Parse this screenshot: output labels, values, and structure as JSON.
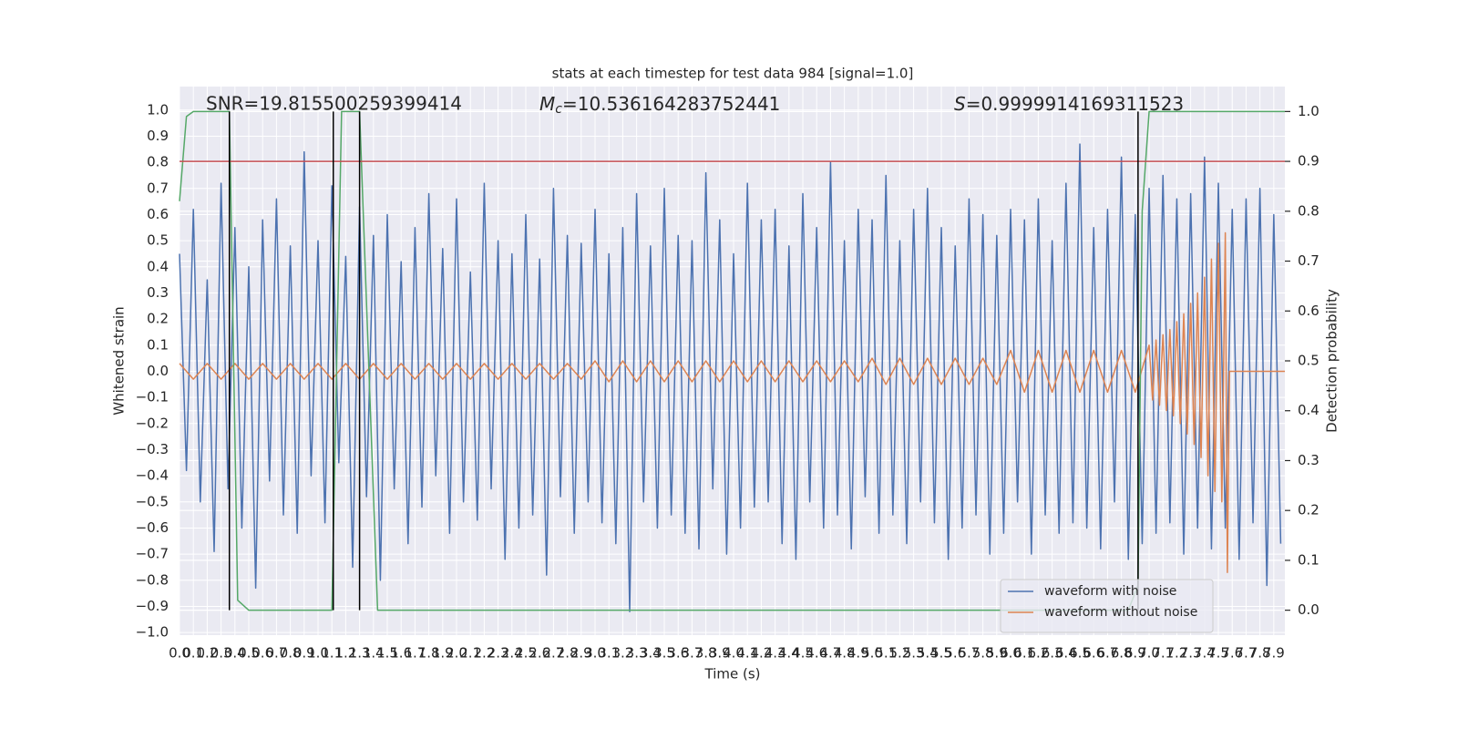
{
  "chart_data": {
    "type": "line",
    "title": "stats at each timestep for test data 984 [signal=1.0]",
    "xlabel": "Time (s)",
    "ylabel": "Whitened strain",
    "y2label": "Detection probability",
    "background": "#eaeaf2",
    "grid": true,
    "legend": "lower right",
    "xlim": [
      0,
      7.98
    ],
    "ylim": [
      -1.01,
      1.09
    ],
    "y2lim": [
      -0.05,
      1.05
    ],
    "xticks": [
      {
        "value": 0,
        "label": "0.0"
      },
      {
        "value": 0.1,
        "label": "0.1"
      },
      {
        "value": 0.2,
        "label": "0.2"
      },
      {
        "value": 0.3,
        "label": "0.3"
      },
      {
        "value": 0.4,
        "label": "0.4"
      },
      {
        "value": 0.5,
        "label": "0.5"
      },
      {
        "value": 0.6,
        "label": "0.6"
      },
      {
        "value": 0.7,
        "label": "0.7"
      },
      {
        "value": 0.8,
        "label": "0.8"
      },
      {
        "value": 0.9,
        "label": "0.9"
      },
      {
        "value": 1,
        "label": "1.0"
      },
      {
        "value": 1.1,
        "label": "1.1"
      },
      {
        "value": 1.2,
        "label": "1.2"
      },
      {
        "value": 1.3,
        "label": "1.3"
      },
      {
        "value": 1.4,
        "label": "1.4"
      },
      {
        "value": 1.5,
        "label": "1.5"
      },
      {
        "value": 1.6,
        "label": "1.6"
      },
      {
        "value": 1.7,
        "label": "1.7"
      },
      {
        "value": 1.8,
        "label": "1.8"
      },
      {
        "value": 1.9,
        "label": "1.9"
      },
      {
        "value": 2,
        "label": "2.0"
      },
      {
        "value": 2.1,
        "label": "2.1"
      },
      {
        "value": 2.2,
        "label": "2.2"
      },
      {
        "value": 2.3,
        "label": "2.3"
      },
      {
        "value": 2.4,
        "label": "2.4"
      },
      {
        "value": 2.5,
        "label": "2.5"
      },
      {
        "value": 2.6,
        "label": "2.6"
      },
      {
        "value": 2.7,
        "label": "2.7"
      },
      {
        "value": 2.8,
        "label": "2.8"
      },
      {
        "value": 2.9,
        "label": "2.9"
      },
      {
        "value": 3,
        "label": "3.0"
      },
      {
        "value": 3.1,
        "label": "3.1"
      },
      {
        "value": 3.2,
        "label": "3.2"
      },
      {
        "value": 3.3,
        "label": "3.3"
      },
      {
        "value": 3.4,
        "label": "3.4"
      },
      {
        "value": 3.5,
        "label": "3.5"
      },
      {
        "value": 3.6,
        "label": "3.6"
      },
      {
        "value": 3.7,
        "label": "3.7"
      },
      {
        "value": 3.8,
        "label": "3.8"
      },
      {
        "value": 3.9,
        "label": "3.9"
      },
      {
        "value": 4,
        "label": "4.0"
      },
      {
        "value": 4.1,
        "label": "4.1"
      },
      {
        "value": 4.2,
        "label": "4.2"
      },
      {
        "value": 4.3,
        "label": "4.3"
      },
      {
        "value": 4.4,
        "label": "4.4"
      },
      {
        "value": 4.5,
        "label": "4.5"
      },
      {
        "value": 4.6,
        "label": "4.6"
      },
      {
        "value": 4.7,
        "label": "4.7"
      },
      {
        "value": 4.8,
        "label": "4.8"
      },
      {
        "value": 4.9,
        "label": "4.9"
      },
      {
        "value": 5,
        "label": "5.0"
      },
      {
        "value": 5.1,
        "label": "5.1"
      },
      {
        "value": 5.2,
        "label": "5.2"
      },
      {
        "value": 5.3,
        "label": "5.3"
      },
      {
        "value": 5.4,
        "label": "5.4"
      },
      {
        "value": 5.5,
        "label": "5.5"
      },
      {
        "value": 5.6,
        "label": "5.6"
      },
      {
        "value": 5.7,
        "label": "5.7"
      },
      {
        "value": 5.8,
        "label": "5.8"
      },
      {
        "value": 5.9,
        "label": "5.9"
      },
      {
        "value": 6,
        "label": "6.0"
      },
      {
        "value": 6.1,
        "label": "6.1"
      },
      {
        "value": 6.2,
        "label": "6.2"
      },
      {
        "value": 6.3,
        "label": "6.3"
      },
      {
        "value": 6.4,
        "label": "6.4"
      },
      {
        "value": 6.5,
        "label": "6.5"
      },
      {
        "value": 6.6,
        "label": "6.6"
      },
      {
        "value": 6.7,
        "label": "6.7"
      },
      {
        "value": 6.8,
        "label": "6.8"
      },
      {
        "value": 6.9,
        "label": "6.9"
      },
      {
        "value": 7,
        "label": "7.0"
      },
      {
        "value": 7.1,
        "label": "7.1"
      },
      {
        "value": 7.2,
        "label": "7.2"
      },
      {
        "value": 7.3,
        "label": "7.3"
      },
      {
        "value": 7.4,
        "label": "7.4"
      },
      {
        "value": 7.5,
        "label": "7.5"
      },
      {
        "value": 7.6,
        "label": "7.6"
      },
      {
        "value": 7.7,
        "label": "7.7"
      },
      {
        "value": 7.8,
        "label": "7.8"
      },
      {
        "value": 7.9,
        "label": "7.9"
      }
    ],
    "yticks": [
      {
        "value": -1,
        "label": "−1.0"
      },
      {
        "value": -0.9,
        "label": "−0.9"
      },
      {
        "value": -0.8,
        "label": "−0.8"
      },
      {
        "value": -0.7,
        "label": "−0.7"
      },
      {
        "value": -0.6,
        "label": "−0.6"
      },
      {
        "value": -0.5,
        "label": "−0.5"
      },
      {
        "value": -0.4,
        "label": "−0.4"
      },
      {
        "value": -0.3,
        "label": "−0.3"
      },
      {
        "value": -0.2,
        "label": "−0.2"
      },
      {
        "value": -0.1,
        "label": "−0.1"
      },
      {
        "value": 0,
        "label": "0.0"
      },
      {
        "value": 0.1,
        "label": "0.1"
      },
      {
        "value": 0.2,
        "label": "0.2"
      },
      {
        "value": 0.3,
        "label": "0.3"
      },
      {
        "value": 0.4,
        "label": "0.4"
      },
      {
        "value": 0.5,
        "label": "0.5"
      },
      {
        "value": 0.6,
        "label": "0.6"
      },
      {
        "value": 0.7,
        "label": "0.7"
      },
      {
        "value": 0.8,
        "label": "0.8"
      },
      {
        "value": 0.9,
        "label": "0.9"
      },
      {
        "value": 1,
        "label": "1.0"
      }
    ],
    "y2ticks": [
      {
        "value": 0,
        "label": "0.0"
      },
      {
        "value": 0.1,
        "label": "0.1"
      },
      {
        "value": 0.2,
        "label": "0.2"
      },
      {
        "value": 0.3,
        "label": "0.3"
      },
      {
        "value": 0.4,
        "label": "0.4"
      },
      {
        "value": 0.5,
        "label": "0.5"
      },
      {
        "value": 0.6,
        "label": "0.6"
      },
      {
        "value": 0.7,
        "label": "0.7"
      },
      {
        "value": 0.8,
        "label": "0.8"
      },
      {
        "value": 0.9,
        "label": "0.9"
      },
      {
        "value": 1,
        "label": "1.0"
      }
    ],
    "series": [
      {
        "name": "waveform with noise",
        "color": "#4c72b0",
        "x": [
          0,
          0.05,
          0.1,
          0.15,
          0.2,
          0.25,
          0.3,
          0.35,
          0.4,
          0.45,
          0.5,
          0.55,
          0.6,
          0.65,
          0.7,
          0.75,
          0.8,
          0.85,
          0.9,
          0.95,
          1,
          1.05,
          1.1,
          1.15,
          1.2,
          1.25,
          1.3,
          1.35,
          1.4,
          1.45,
          1.5,
          1.55,
          1.6,
          1.65,
          1.7,
          1.75,
          1.8,
          1.85,
          1.9,
          1.95,
          2,
          2.05,
          2.1,
          2.15,
          2.2,
          2.25,
          2.3,
          2.35,
          2.4,
          2.45,
          2.5,
          2.55,
          2.6,
          2.65,
          2.7,
          2.75,
          2.8,
          2.85,
          2.9,
          2.95,
          3,
          3.05,
          3.1,
          3.15,
          3.2,
          3.25,
          3.3,
          3.35,
          3.4,
          3.45,
          3.5,
          3.55,
          3.6,
          3.65,
          3.7,
          3.75,
          3.8,
          3.85,
          3.9,
          3.95,
          4,
          4.05,
          4.1,
          4.15,
          4.2,
          4.25,
          4.3,
          4.35,
          4.4,
          4.45,
          4.5,
          4.55,
          4.6,
          4.65,
          4.7,
          4.75,
          4.8,
          4.85,
          4.9,
          4.95,
          5,
          5.05,
          5.1,
          5.15,
          5.2,
          5.25,
          5.3,
          5.35,
          5.4,
          5.45,
          5.5,
          5.55,
          5.6,
          5.65,
          5.7,
          5.75,
          5.8,
          5.85,
          5.9,
          5.95,
          6,
          6.05,
          6.1,
          6.15,
          6.2,
          6.25,
          6.3,
          6.35,
          6.4,
          6.45,
          6.5,
          6.55,
          6.6,
          6.65,
          6.7,
          6.75,
          6.8,
          6.85,
          6.9,
          6.95,
          7,
          7.05,
          7.1,
          7.15,
          7.2,
          7.25,
          7.3,
          7.35,
          7.4,
          7.45,
          7.5,
          7.55,
          7.6,
          7.65,
          7.7,
          7.75,
          7.8,
          7.85,
          7.9,
          7.95
        ],
        "values": [
          0.45,
          -0.38,
          0.62,
          -0.5,
          0.35,
          -0.69,
          0.72,
          -0.45,
          0.55,
          -0.6,
          0.4,
          -0.83,
          0.58,
          -0.42,
          0.66,
          -0.55,
          0.48,
          -0.62,
          0.84,
          -0.4,
          0.5,
          -0.58,
          0.71,
          -0.35,
          0.44,
          -0.75,
          0.63,
          -0.48,
          0.52,
          -0.8,
          0.6,
          -0.45,
          0.42,
          -0.66,
          0.55,
          -0.52,
          0.68,
          -0.4,
          0.47,
          -0.62,
          0.66,
          -0.5,
          0.38,
          -0.57,
          0.72,
          -0.45,
          0.5,
          -0.72,
          0.45,
          -0.6,
          0.6,
          -0.55,
          0.43,
          -0.78,
          0.7,
          -0.48,
          0.52,
          -0.62,
          0.49,
          -0.5,
          0.62,
          -0.58,
          0.45,
          -0.66,
          0.55,
          -0.92,
          0.68,
          -0.5,
          0.48,
          -0.6,
          0.7,
          -0.55,
          0.52,
          -0.62,
          0.5,
          -0.68,
          0.76,
          -0.45,
          0.58,
          -0.7,
          0.45,
          -0.6,
          0.72,
          -0.52,
          0.58,
          -0.5,
          0.62,
          -0.66,
          0.48,
          -0.72,
          0.68,
          -0.5,
          0.55,
          -0.6,
          0.8,
          -0.55,
          0.5,
          -0.68,
          0.62,
          -0.48,
          0.58,
          -0.62,
          0.75,
          -0.55,
          0.5,
          -0.66,
          0.62,
          -0.5,
          0.7,
          -0.58,
          0.55,
          -0.72,
          0.48,
          -0.6,
          0.66,
          -0.55,
          0.6,
          -0.7,
          0.52,
          -0.62,
          0.62,
          -0.5,
          0.58,
          -0.7,
          0.66,
          -0.55,
          0.5,
          -0.62,
          0.72,
          -0.58,
          0.87,
          -0.6,
          0.55,
          -0.68,
          0.62,
          -0.5,
          0.82,
          -0.72,
          0.6,
          -0.66,
          0.7,
          -0.62,
          0.75,
          -0.58,
          0.66,
          -0.7,
          0.68,
          -0.6,
          0.82,
          -0.68,
          0.72,
          -0.6,
          0.62,
          -0.72,
          0.66,
          -0.58,
          0.7,
          -0.82,
          0.6,
          -0.66
        ]
      },
      {
        "name": "waveform without noise",
        "color": "#dd8452",
        "x": [
          0,
          0.1,
          0.2,
          0.3,
          0.4,
          0.5,
          0.6,
          0.7,
          0.8,
          0.9,
          1,
          1.1,
          1.2,
          1.3,
          1.4,
          1.5,
          1.6,
          1.7,
          1.8,
          1.9,
          2,
          2.1,
          2.2,
          2.3,
          2.4,
          2.5,
          2.6,
          2.7,
          2.8,
          2.9,
          3,
          3.1,
          3.2,
          3.3,
          3.4,
          3.5,
          3.6,
          3.7,
          3.8,
          3.9,
          4,
          4.1,
          4.2,
          4.3,
          4.4,
          4.5,
          4.6,
          4.7,
          4.8,
          4.9,
          5,
          5.1,
          5.2,
          5.3,
          5.4,
          5.5,
          5.6,
          5.7,
          5.8,
          5.9,
          6,
          6.1,
          6.2,
          6.3,
          6.4,
          6.5,
          6.6,
          6.7,
          6.8,
          6.9,
          7,
          7.025,
          7.05,
          7.075,
          7.1,
          7.125,
          7.15,
          7.175,
          7.2,
          7.225,
          7.25,
          7.275,
          7.3,
          7.325,
          7.35,
          7.375,
          7.4,
          7.425,
          7.45,
          7.475,
          7.5,
          7.525,
          7.55,
          7.565,
          7.58,
          7.98
        ],
        "values": [
          0.03,
          -0.03,
          0.03,
          -0.03,
          0.03,
          -0.03,
          0.03,
          -0.03,
          0.03,
          -0.03,
          0.03,
          -0.03,
          0.03,
          -0.03,
          0.03,
          -0.03,
          0.03,
          -0.03,
          0.03,
          -0.03,
          0.03,
          -0.03,
          0.03,
          -0.03,
          0.03,
          -0.03,
          0.03,
          -0.03,
          0.03,
          -0.03,
          0.04,
          -0.04,
          0.04,
          -0.04,
          0.04,
          -0.04,
          0.04,
          -0.04,
          0.04,
          -0.04,
          0.04,
          -0.04,
          0.04,
          -0.04,
          0.04,
          -0.04,
          0.04,
          -0.04,
          0.04,
          -0.04,
          0.05,
          -0.05,
          0.05,
          -0.05,
          0.05,
          -0.05,
          0.05,
          -0.05,
          0.05,
          -0.05,
          0.08,
          -0.08,
          0.08,
          -0.08,
          0.08,
          -0.08,
          0.08,
          -0.08,
          0.08,
          -0.08,
          0.1,
          -0.11,
          0.12,
          -0.13,
          0.14,
          -0.15,
          0.16,
          -0.17,
          0.19,
          -0.2,
          0.22,
          -0.24,
          0.26,
          -0.28,
          0.3,
          -0.33,
          0.36,
          -0.4,
          0.43,
          -0.46,
          0.49,
          -0.5,
          0.53,
          -0.77,
          0,
          0
        ]
      },
      {
        "color": "#55a868",
        "axis": "y2",
        "x": [
          0,
          0.05,
          0.1,
          0.36,
          0.42,
          0.5,
          1.1,
          1.17,
          1.22,
          1.3,
          1.43,
          6.85,
          6.92,
          6.95,
          7,
          7.98
        ],
        "values": [
          0.82,
          0.99,
          1,
          1,
          0.02,
          0,
          0,
          1,
          1,
          1,
          0,
          0,
          0.05,
          0.8,
          1,
          1
        ]
      }
    ],
    "hlines": [
      {
        "y": 0.9,
        "axis": "y2",
        "color": "#c44e52"
      }
    ],
    "vlines": {
      "x": [
        0.36,
        1.11,
        1.3,
        6.92
      ],
      "color": "#000000",
      "y2range": [
        0,
        1
      ]
    },
    "annotations": [
      {
        "text": "SNR=19.815500259399414"
      },
      {
        "symbol": "M",
        "subscript": "c",
        "text": "=10.536164283752441"
      },
      {
        "symbol": "S",
        "text": "=0.9999914169311523"
      }
    ]
  }
}
